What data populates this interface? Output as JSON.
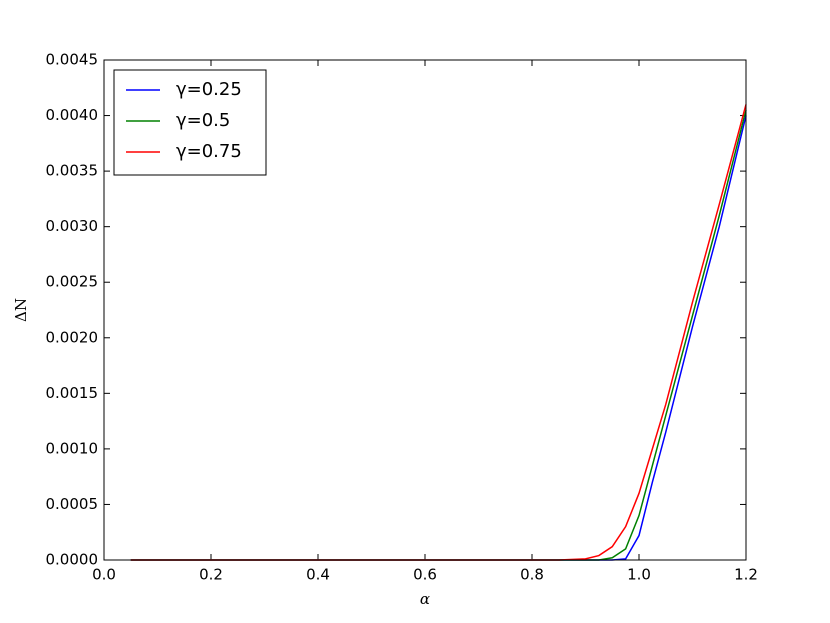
{
  "chart_data": {
    "type": "line",
    "x_label": "α",
    "y_label": "ΔN",
    "x": [
      0.05,
      0.2,
      0.4,
      0.6,
      0.8,
      0.85,
      0.9,
      0.925,
      0.95,
      0.975,
      1.0,
      1.025,
      1.05,
      1.1,
      1.15,
      1.2
    ],
    "series": [
      {
        "name": "γ=0.25",
        "color": "#0000ff",
        "values": [
          0,
          0,
          0,
          0,
          0,
          0,
          0,
          0,
          0,
          1e-05,
          0.00022,
          0.0007,
          0.00115,
          0.0021,
          0.003,
          0.004
        ]
      },
      {
        "name": "γ=0.5",
        "color": "#008000",
        "values": [
          0,
          0,
          0,
          0,
          0,
          0,
          0,
          0,
          2e-05,
          0.0001,
          0.0004,
          0.00085,
          0.0013,
          0.0022,
          0.0031,
          0.00405
        ]
      },
      {
        "name": "γ=0.75",
        "color": "#ff0000",
        "values": [
          0,
          0,
          0,
          0,
          0,
          0,
          1e-05,
          4e-05,
          0.00012,
          0.0003,
          0.0006,
          0.001,
          0.0014,
          0.00232,
          0.0032,
          0.0041
        ]
      }
    ],
    "xlim": [
      0,
      1.2
    ],
    "xticks": [
      {
        "value": 0,
        "label": "0.0"
      },
      0.2,
      0.4,
      0.6,
      0.8,
      {
        "value": 1,
        "label": "1.0"
      },
      1.2
    ],
    "ylim": [
      0,
      0.0045
    ],
    "yticks": [
      {
        "value": 0,
        "label": "0.0000"
      },
      {
        "value": 0.0005,
        "label": "0.0005"
      },
      {
        "value": 0.001,
        "label": "0.0010"
      },
      {
        "value": 0.0015,
        "label": "0.0015"
      },
      {
        "value": 0.002,
        "label": "0.0020"
      },
      {
        "value": 0.0025,
        "label": "0.0025"
      },
      {
        "value": 0.003,
        "label": "0.0030"
      },
      {
        "value": 0.0035,
        "label": "0.0035"
      },
      {
        "value": 0.004,
        "label": "0.0040"
      },
      {
        "value": 0.0045,
        "label": "0.0045"
      }
    ],
    "grid": false,
    "legend": "upper-left"
  }
}
